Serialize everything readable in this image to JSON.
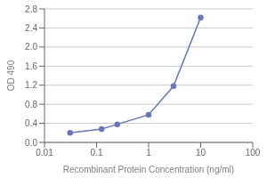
{
  "chart_data": {
    "type": "line",
    "x": [
      0.031,
      0.125,
      0.25,
      1.0,
      3.0,
      10.0
    ],
    "values": [
      0.2,
      0.28,
      0.38,
      0.58,
      1.18,
      2.62
    ],
    "color": "#6677bb",
    "marker": "circle",
    "xlabel": "Recombinant Protein Concentration (ng/ml)",
    "ylabel": "OD 490",
    "log": "x",
    "xlim": [
      0.01,
      100
    ],
    "ylim": [
      0.0,
      2.8
    ],
    "xticks": [
      0.01,
      0.1,
      1,
      10,
      100
    ],
    "yticks": [
      {
        "value": 0.0,
        "label": "0.0"
      },
      0.4,
      0.8,
      1.2,
      1.6,
      {
        "value": 2.0,
        "label": "2.0"
      },
      2.4,
      2.8
    ],
    "grid": true
  }
}
